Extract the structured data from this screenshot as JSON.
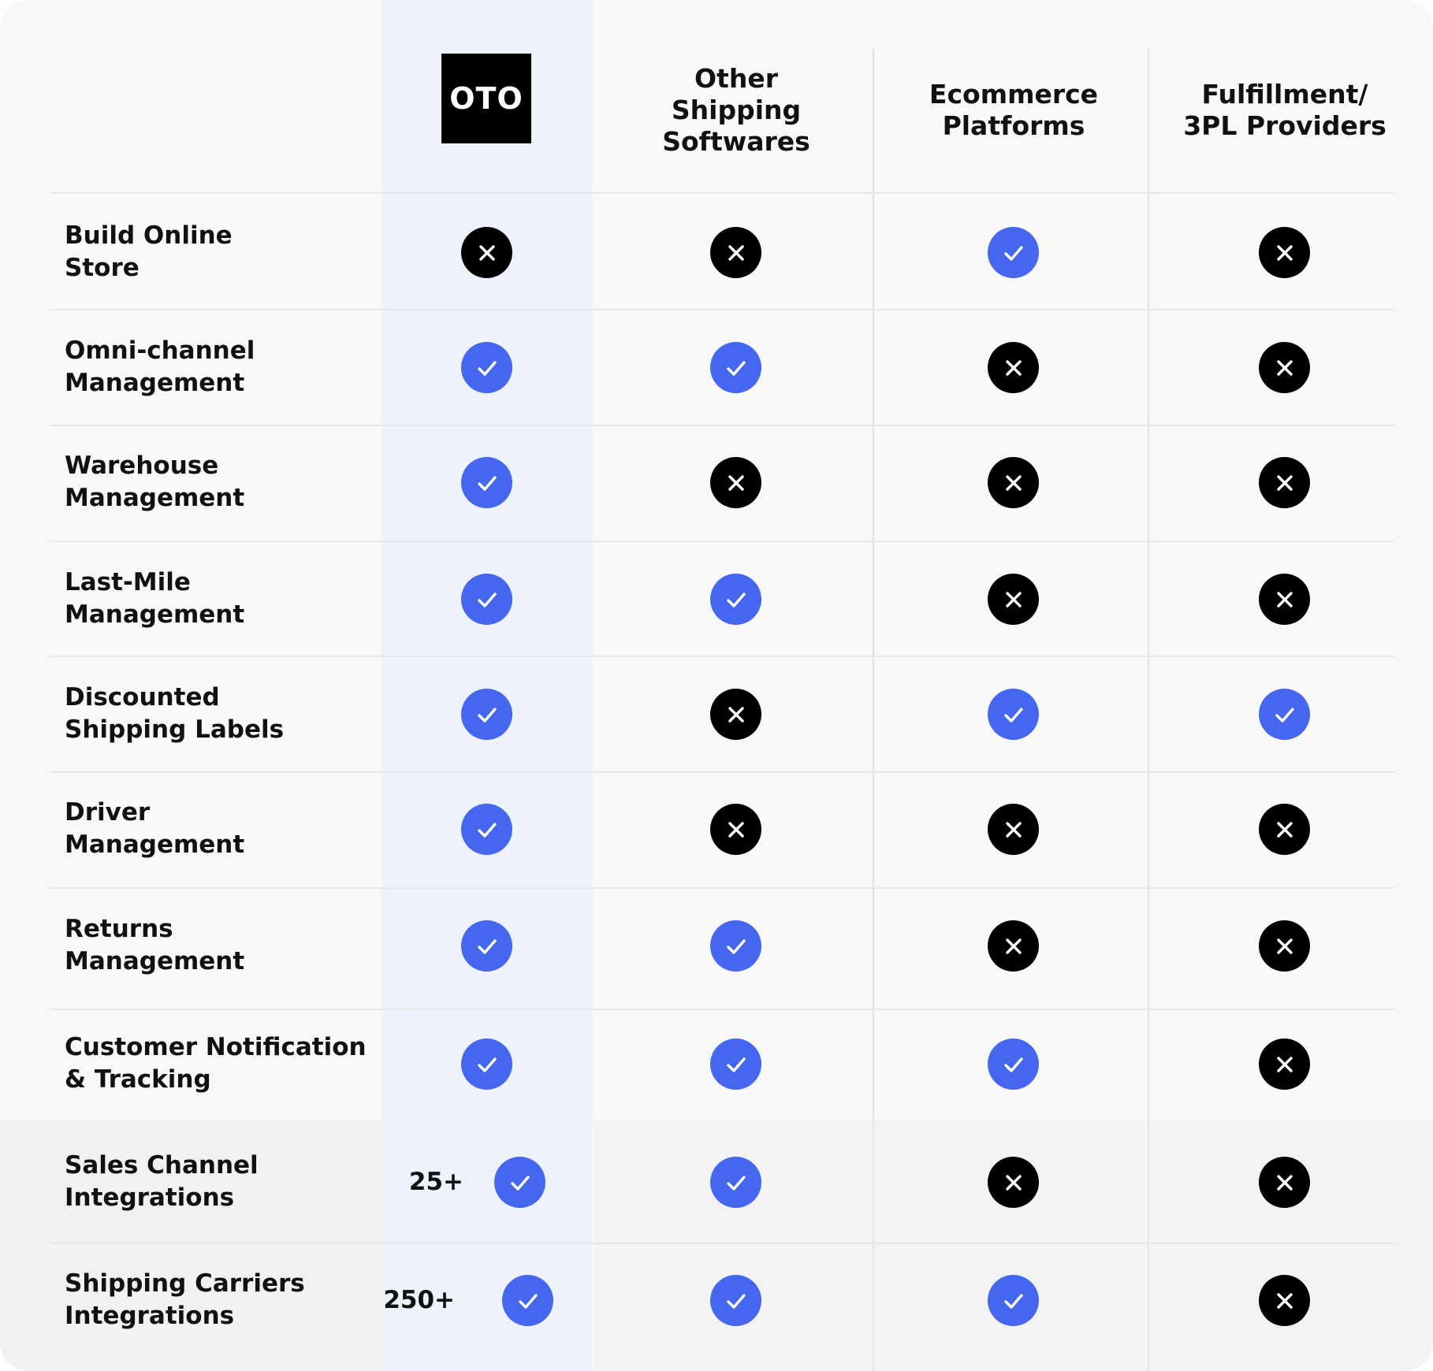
{
  "brand": {
    "logo_text": "OTO"
  },
  "columns": [
    {
      "key": "oto",
      "lines": []
    },
    {
      "key": "other_shipping",
      "lines": [
        "Other",
        "Shipping",
        "Softwares"
      ]
    },
    {
      "key": "ecommerce",
      "lines": [
        "Ecommerce",
        "Platforms"
      ]
    },
    {
      "key": "fulfillment",
      "lines": [
        "Fulfillment/",
        "3PL Providers"
      ]
    }
  ],
  "rows": [
    {
      "lines": [
        "Build Online",
        "Store"
      ],
      "values": [
        false,
        false,
        true,
        false
      ],
      "oto_count": ""
    },
    {
      "lines": [
        "Omni-channel",
        "Management"
      ],
      "values": [
        true,
        true,
        false,
        false
      ],
      "oto_count": ""
    },
    {
      "lines": [
        "Warehouse",
        "Management"
      ],
      "values": [
        true,
        false,
        false,
        false
      ],
      "oto_count": ""
    },
    {
      "lines": [
        "Last-Mile",
        "Management"
      ],
      "values": [
        true,
        true,
        false,
        false
      ],
      "oto_count": ""
    },
    {
      "lines": [
        "Discounted",
        "Shipping Labels"
      ],
      "values": [
        true,
        false,
        true,
        true
      ],
      "oto_count": ""
    },
    {
      "lines": [
        "Driver",
        "Management"
      ],
      "values": [
        true,
        false,
        false,
        false
      ],
      "oto_count": ""
    },
    {
      "lines": [
        "Returns",
        "Management"
      ],
      "values": [
        true,
        true,
        false,
        false
      ],
      "oto_count": ""
    },
    {
      "lines": [
        "Customer Notification",
        "& Tracking"
      ],
      "values": [
        true,
        true,
        true,
        false
      ],
      "oto_count": ""
    },
    {
      "lines": [
        "Sales Channel",
        "Integrations"
      ],
      "values": [
        true,
        true,
        false,
        false
      ],
      "oto_count": "25+"
    },
    {
      "lines": [
        "Shipping Carriers",
        "Integrations"
      ],
      "values": [
        true,
        true,
        true,
        false
      ],
      "oto_count": "250+"
    }
  ],
  "icons": {
    "yes": "check-circle-icon",
    "no": "x-circle-icon"
  },
  "colors": {
    "yes": "#4566ee",
    "no": "#000000",
    "highlight_column": "#edf2fd"
  }
}
